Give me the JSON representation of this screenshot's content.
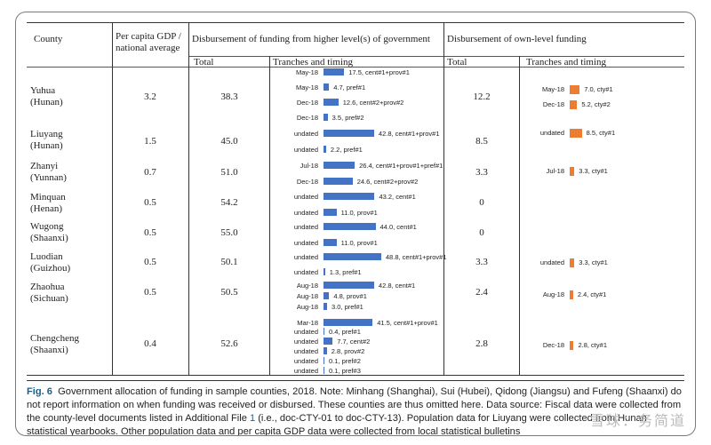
{
  "headers": {
    "county": "County",
    "gdp_line1": "Per capita GDP /",
    "gdp_line2": "national average",
    "higher_group": "Disbursement of funding from higher level(s) of government",
    "own_group": "Disbursement of own-level funding",
    "total": "Total",
    "tranches": "Tranches and timing"
  },
  "rows": [
    {
      "name": "Yuhua",
      "province": "(Hunan)",
      "gdp": "3.2",
      "higher_total": "38.3",
      "own_total": "12.2"
    },
    {
      "name": "Liuyang",
      "province": "(Hunan)",
      "gdp": "1.5",
      "higher_total": "45.0",
      "own_total": "8.5"
    },
    {
      "name": "Zhanyi",
      "province": "(Yunnan)",
      "gdp": "0.7",
      "higher_total": "51.0",
      "own_total": "3.3"
    },
    {
      "name": "Minquan",
      "province": "(Henan)",
      "gdp": "0.5",
      "higher_total": "54.2",
      "own_total": "0"
    },
    {
      "name": "Wugong",
      "province": "(Shaanxi)",
      "gdp": "0.5",
      "higher_total": "55.0",
      "own_total": "0"
    },
    {
      "name": "Luodian",
      "province": "(Guizhou)",
      "gdp": "0.5",
      "higher_total": "50.1",
      "own_total": "3.3"
    },
    {
      "name": "Zhaohua",
      "province": "(Sichuan)",
      "gdp": "0.5",
      "higher_total": "50.5",
      "own_total": "2.4"
    },
    {
      "name": "Chengcheng",
      "province": "(Shaanxi)",
      "gdp": "0.4",
      "higher_total": "52.6",
      "own_total": "2.8"
    }
  ],
  "chart_data": [
    {
      "type": "bar",
      "orientation": "horizontal",
      "column": "Disbursement of funding from higher level(s) of government — Tranches and timing",
      "color": "#4472c4",
      "tranches": [
        {
          "county": "Yuhua",
          "timing": "May-18",
          "value": 17.5,
          "label": "17.5, cent#1+prov#1"
        },
        {
          "county": "Yuhua",
          "timing": "May-18",
          "value": 4.7,
          "label": "4.7, pref#1"
        },
        {
          "county": "Yuhua",
          "timing": "Dec-18",
          "value": 12.6,
          "label": "12.6, cent#2+prov#2"
        },
        {
          "county": "Yuhua",
          "timing": "Dec-18",
          "value": 3.5,
          "label": "3.5, pref#2"
        },
        {
          "county": "Liuyang",
          "timing": "undated",
          "value": 42.8,
          "label": "42.8, cent#1+prov#1"
        },
        {
          "county": "Liuyang",
          "timing": "undated",
          "value": 2.2,
          "label": "2.2, pref#1"
        },
        {
          "county": "Zhanyi",
          "timing": "Jul-18",
          "value": 26.4,
          "label": "26.4, cent#1+prov#1+pref#1"
        },
        {
          "county": "Zhanyi",
          "timing": "Dec-18",
          "value": 24.6,
          "label": "24.6, cent#2+prov#2"
        },
        {
          "county": "Minquan",
          "timing": "undated",
          "value": 43.2,
          "label": "43.2, cent#1"
        },
        {
          "county": "Minquan",
          "timing": "undated",
          "value": 11.0,
          "label": "11.0, prov#1"
        },
        {
          "county": "Wugong",
          "timing": "undated",
          "value": 44.0,
          "label": "44.0, cent#1"
        },
        {
          "county": "Wugong",
          "timing": "undated",
          "value": 11.0,
          "label": "11.0, prov#1"
        },
        {
          "county": "Luodian",
          "timing": "undated",
          "value": 48.8,
          "label": "48.8, cent#1+prov#1"
        },
        {
          "county": "Luodian",
          "timing": "undated",
          "value": 1.3,
          "label": "1.3, pref#1"
        },
        {
          "county": "Zhaohua",
          "timing": "Aug-18",
          "value": 42.8,
          "label": "42.8, cent#1"
        },
        {
          "county": "Zhaohua",
          "timing": "Aug-18",
          "value": 4.8,
          "label": "4.8, prov#1"
        },
        {
          "county": "Zhaohua",
          "timing": "Aug-18",
          "value": 3.0,
          "label": "3.0, pref#1"
        },
        {
          "county": "Chengcheng",
          "timing": "Mar-18",
          "value": 41.5,
          "label": "41.5, cent#1+prov#1"
        },
        {
          "county": "Chengcheng",
          "timing": "undated",
          "value": 0.4,
          "label": "0.4, pref#1"
        },
        {
          "county": "Chengcheng",
          "timing": "undated",
          "value": 7.7,
          "label": "7.7, cent#2"
        },
        {
          "county": "Chengcheng",
          "timing": "undated",
          "value": 2.8,
          "label": "2.8, prov#2"
        },
        {
          "county": "Chengcheng",
          "timing": "undated",
          "value": 0.1,
          "label": "0.1, pref#2"
        },
        {
          "county": "Chengcheng",
          "timing": "undated",
          "value": 0.1,
          "label": "0.1, pref#3"
        }
      ]
    },
    {
      "type": "bar",
      "orientation": "horizontal",
      "column": "Disbursement of own-level funding — Tranches and timing",
      "color": "#ed7d31",
      "tranches": [
        {
          "county": "Yuhua",
          "timing": "May-18",
          "value": 7.0,
          "label": "7.0, cty#1"
        },
        {
          "county": "Yuhua",
          "timing": "Dec-18",
          "value": 5.2,
          "label": "5.2, cty#2"
        },
        {
          "county": "Liuyang",
          "timing": "undated",
          "value": 8.5,
          "label": "8.5, cty#1"
        },
        {
          "county": "Zhanyi",
          "timing": "Jul-18",
          "value": 3.3,
          "label": "3.3, cty#1"
        },
        {
          "county": "Luodian",
          "timing": "undated",
          "value": 3.3,
          "label": "3.3, cty#1"
        },
        {
          "county": "Zhaohua",
          "timing": "Aug-18",
          "value": 2.4,
          "label": "2.4, cty#1"
        },
        {
          "county": "Chengcheng",
          "timing": "Dec-18",
          "value": 2.8,
          "label": "2.8, cty#1"
        }
      ]
    }
  ],
  "caption": {
    "label": "Fig. 6",
    "part1": "Government allocation of funding in sample counties, 2018. Note: Minhang (Shanghai), Sui (Hubei), Qidong (Jiangsu) and Fufeng (Shaanxi) do not report information on when funding was received or disbursed. These counties are thus omitted here. Data source: Fiscal data were collected from the county-level documents listed in Additional File ",
    "link": "1",
    "part2": " (i.e., doc-CTY-01 to doc-CTY-13). Population data for Liuyang were collected from Hunan statistical yearbooks. Other population data and per capita GDP data were collected from local statistical bulletins"
  },
  "watermark": "雪球：务简道"
}
